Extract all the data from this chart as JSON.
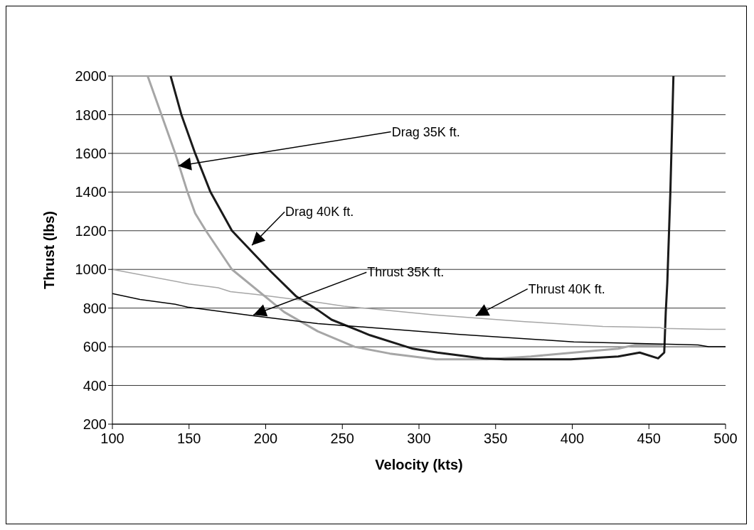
{
  "chart_data": {
    "type": "line",
    "xlabel": "Velocity (kts)",
    "ylabel": "Thrust (lbs)",
    "xlim": [
      100,
      500
    ],
    "xticks": [
      100,
      150,
      200,
      250,
      300,
      350,
      400,
      450,
      500
    ],
    "ylim": [
      200,
      2000
    ],
    "yticks": [
      200,
      400,
      600,
      800,
      1000,
      1200,
      1400,
      1600,
      1800,
      2000
    ],
    "grid": "y",
    "marker": "none",
    "line_style": "solid",
    "series": [
      {
        "color": "#a6a6a6",
        "x": [
          123,
          141,
          149,
          154,
          161,
          178,
          212,
          234,
          258,
          281,
          311,
          344,
          373,
          401,
          430,
          441,
          459
        ],
        "values": [
          2000,
          1600,
          1400,
          1290,
          1200,
          1000,
          780,
          680,
          600,
          565,
          535,
          535,
          550,
          570,
          590,
          610,
          610
        ]
      },
      {
        "color": "#1a1a1a",
        "x": [
          138,
          145,
          154,
          164,
          178,
          202,
          220,
          234,
          243,
          268,
          296,
          312,
          342,
          356,
          399,
          430,
          444,
          456,
          460,
          461,
          462,
          464,
          466
        ],
        "values": [
          2000,
          1800,
          1600,
          1400,
          1200,
          1000,
          860,
          790,
          740,
          660,
          590,
          570,
          540,
          535,
          535,
          550,
          570,
          540,
          570,
          780,
          930,
          1400,
          2000
        ]
      },
      {
        "color": "#000000",
        "x": [
          100,
          118,
          141,
          149,
          192,
          234,
          268,
          325,
          382,
          401,
          430,
          482,
          489,
          500
        ],
        "values": [
          875,
          845,
          820,
          805,
          760,
          720,
          700,
          665,
          635,
          625,
          620,
          610,
          600,
          600
        ]
      },
      {
        "color": "#a6a6a6",
        "x": [
          100,
          150,
          169,
          177,
          194,
          234,
          251,
          310,
          369,
          420,
          457,
          459,
          489,
          500
        ],
        "values": [
          1000,
          925,
          905,
          885,
          870,
          830,
          810,
          765,
          730,
          705,
          700,
          695,
          690,
          690
        ]
      }
    ],
    "annotations": [
      {
        "text": "Drag 35K ft.",
        "x": 143,
        "y": 1535
      },
      {
        "text": "Drag 40K ft.",
        "x": 191,
        "y": 1125
      },
      {
        "text": "Thrust 35K ft.",
        "x": 192,
        "y": 765
      },
      {
        "text": "Thrust 40K ft.",
        "x": 337,
        "y": 760
      }
    ]
  }
}
